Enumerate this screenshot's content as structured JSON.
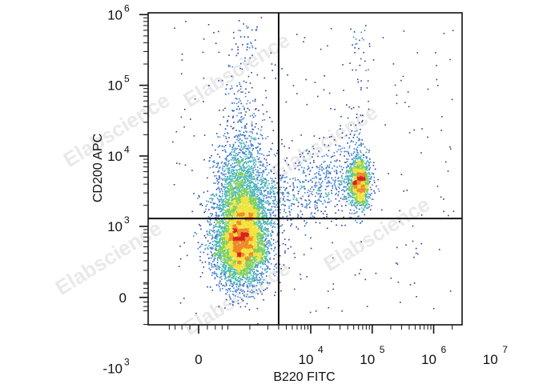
{
  "chart_data": {
    "type": "scatter",
    "subtype": "flow-cytometry-density-dot-plot",
    "title": "",
    "xlabel": "B220 FITC",
    "ylabel": "CD200 APC",
    "x_scale": "biexponential",
    "y_scale": "biexponential",
    "x_ticks": [
      {
        "base": "0",
        "exp": ""
      },
      {
        "base": "10",
        "exp": "4"
      },
      {
        "base": "10",
        "exp": "5"
      },
      {
        "base": "10",
        "exp": "6"
      },
      {
        "base": "10",
        "exp": "7"
      }
    ],
    "y_ticks": [
      {
        "base": "-10",
        "exp": "3"
      },
      {
        "base": "0",
        "exp": ""
      },
      {
        "base": "10",
        "exp": "3"
      },
      {
        "base": "10",
        "exp": "4"
      },
      {
        "base": "10",
        "exp": "5"
      },
      {
        "base": "10",
        "exp": "6"
      }
    ],
    "quadrant_gate": {
      "x": 3000,
      "y": 1300
    },
    "populations": [
      {
        "x_center": 700,
        "y_center": 600,
        "note": "B220- CD200- main population"
      },
      {
        "x_center": 60000,
        "y_center": 4500,
        "note": "B220+ CD200+ population"
      }
    ],
    "density_colors": [
      "#2b3a9c",
      "#3f7fd1",
      "#49b6b6",
      "#7fcf5a",
      "#f2e23a",
      "#f08a2a",
      "#d8231f"
    ],
    "grid": false,
    "legend": "none",
    "watermark_text": "Elabscience"
  }
}
